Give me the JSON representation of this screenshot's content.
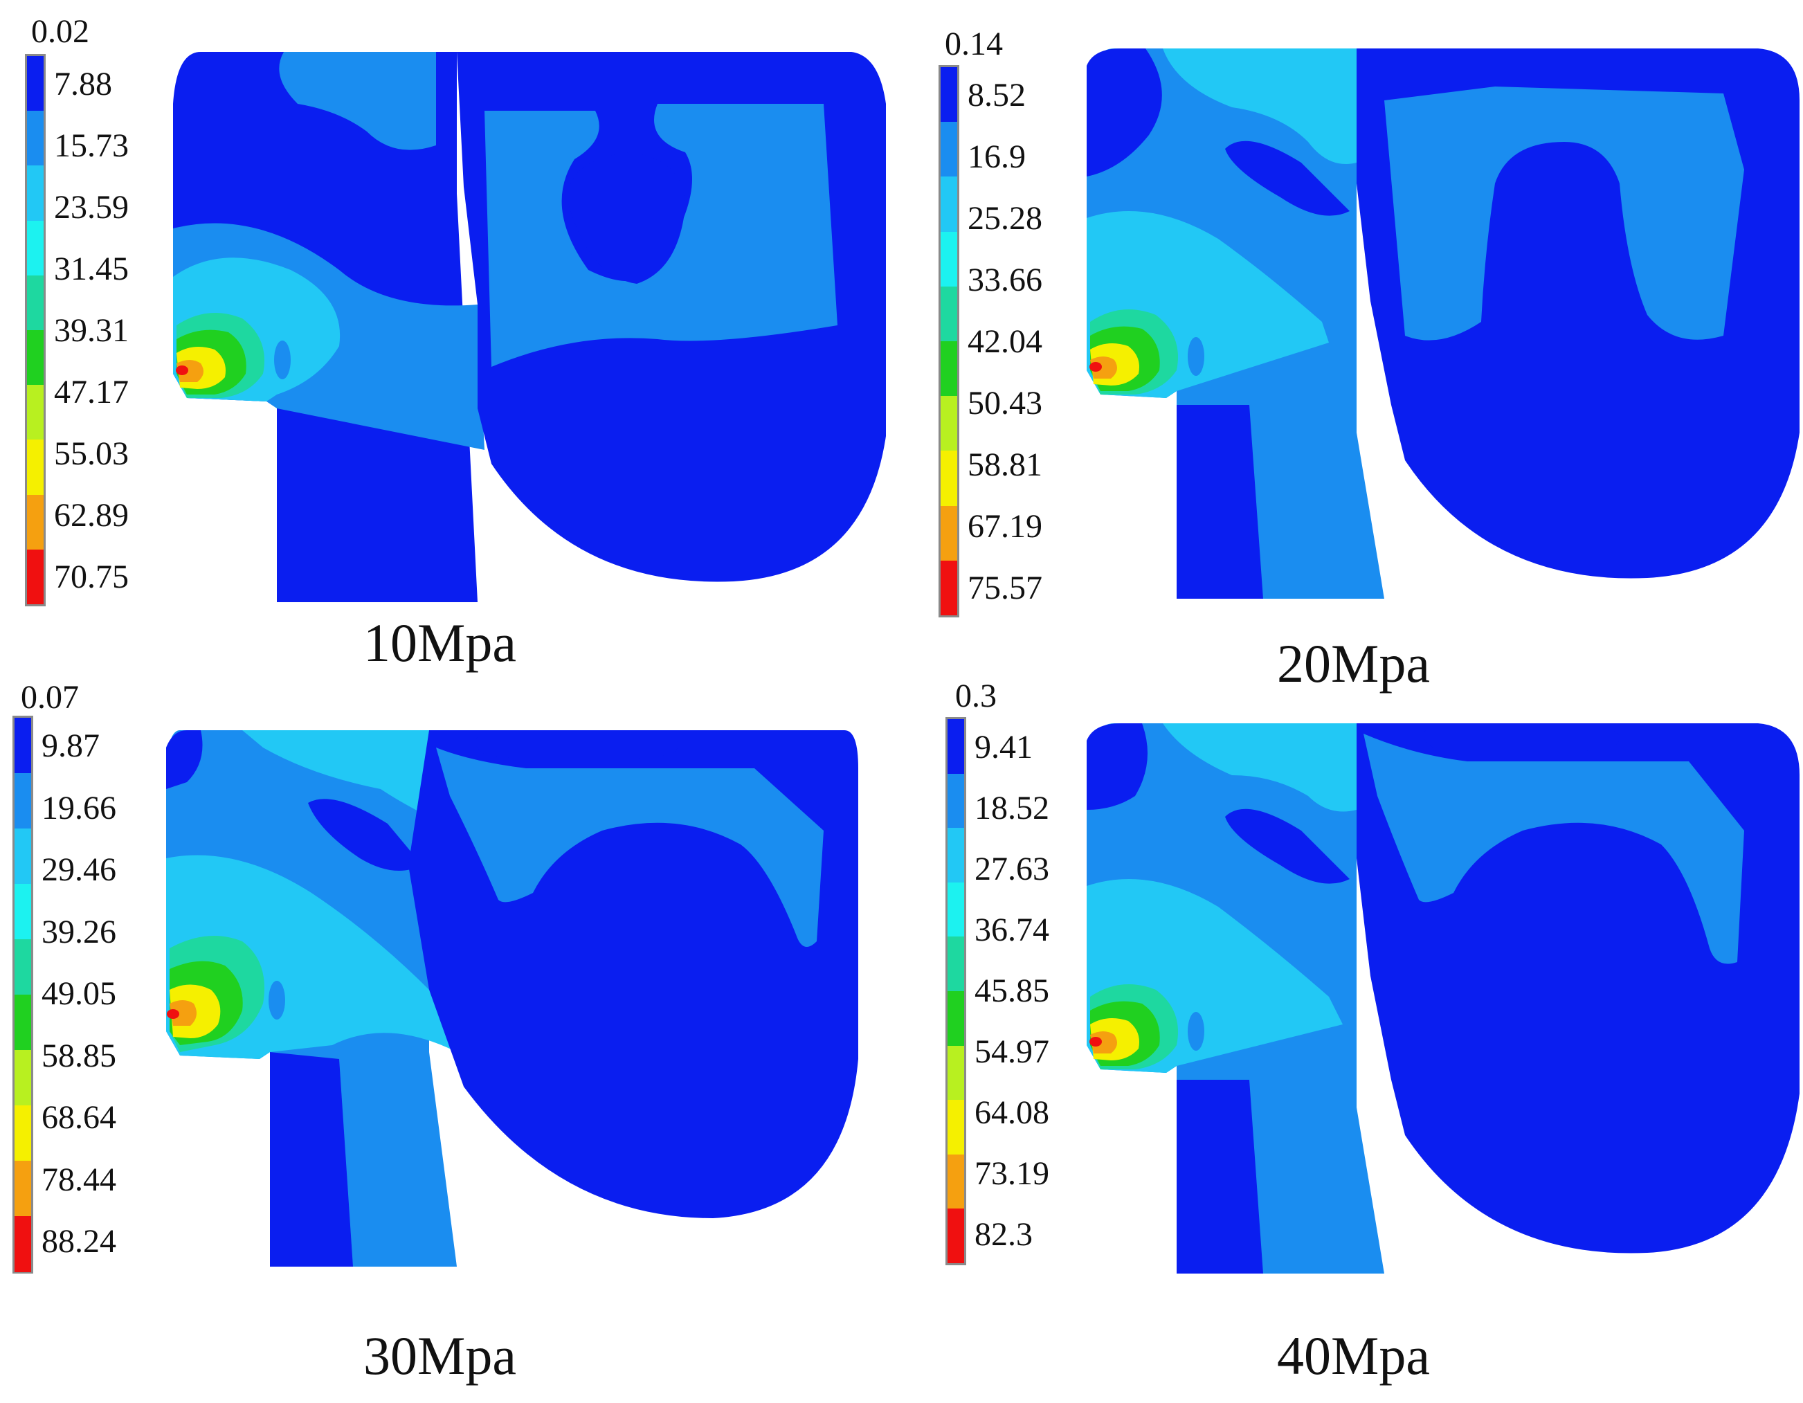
{
  "colors": {
    "deep_blue": "#0a1ef0",
    "mid_blue": "#1a8df0",
    "light_blue": "#22c8f5",
    "cyan": "#1cf2f0",
    "teal": "#1ed8a0",
    "green": "#20d020",
    "yellow_green": "#b8f020",
    "yellow": "#f5f000",
    "orange": "#f5a010",
    "red": "#f01010"
  },
  "legend_colors": [
    "#0a1ef0",
    "#1a8df0",
    "#22c8f5",
    "#1cf2f0",
    "#1ed8a0",
    "#20d020",
    "#b8f020",
    "#f5f000",
    "#f5a010",
    "#f01010"
  ],
  "panels": [
    {
      "caption": "10Mpa",
      "legend_min": "0.02",
      "legend_labels": [
        "7.88",
        "15.73",
        "23.59",
        "31.45",
        "39.31",
        "47.17",
        "55.03",
        "62.89",
        "70.75"
      ]
    },
    {
      "caption": "20Mpa",
      "legend_min": "0.14",
      "legend_labels": [
        "8.52",
        "16.9",
        "25.28",
        "33.66",
        "42.04",
        "50.43",
        "58.81",
        "67.19",
        "75.57"
      ]
    },
    {
      "caption": "30Mpa",
      "legend_min": "0.07",
      "legend_labels": [
        "9.87",
        "19.66",
        "29.46",
        "39.26",
        "49.05",
        "58.85",
        "68.64",
        "78.44",
        "88.24"
      ]
    },
    {
      "caption": "40Mpa",
      "legend_min": "0.3",
      "legend_labels": [
        "9.41",
        "18.52",
        "27.63",
        "36.74",
        "45.85",
        "54.97",
        "64.08",
        "73.19",
        "82.3"
      ]
    }
  ]
}
